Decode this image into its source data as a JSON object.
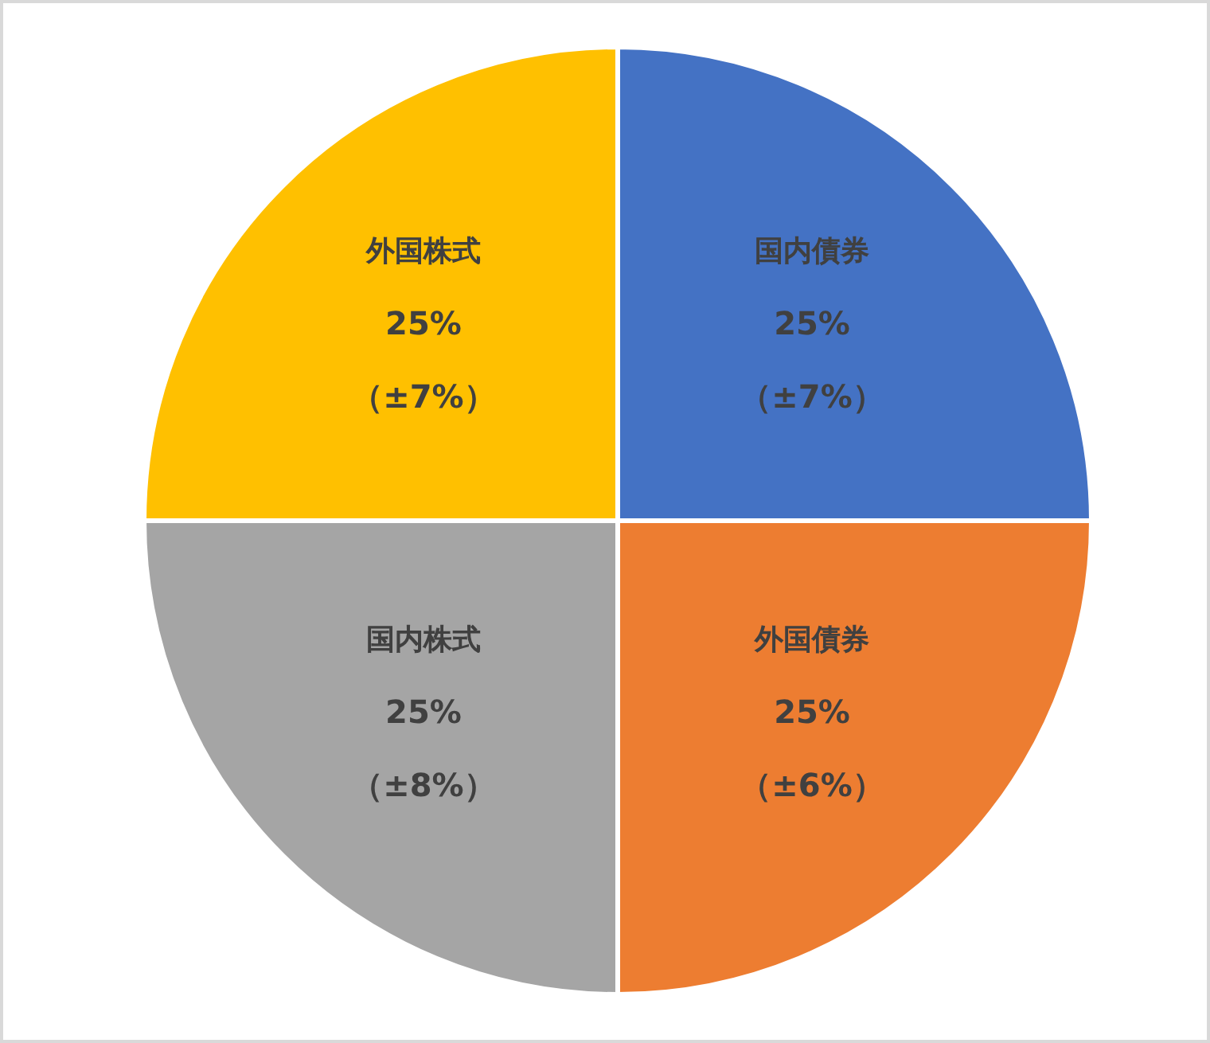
{
  "chart_data": {
    "type": "pie",
    "categories": [
      "国内債券",
      "外国債券",
      "国内株式",
      "外国株式"
    ],
    "values": [
      25,
      25,
      25,
      25
    ],
    "colors": [
      "#4472c4",
      "#ed7d31",
      "#a5a5a5",
      "#ffc000"
    ],
    "value_labels": [
      "25%\n（±7%）",
      "25%\n（±6%）",
      "25%\n（±8%）",
      "25%\n（±7%）"
    ]
  }
}
